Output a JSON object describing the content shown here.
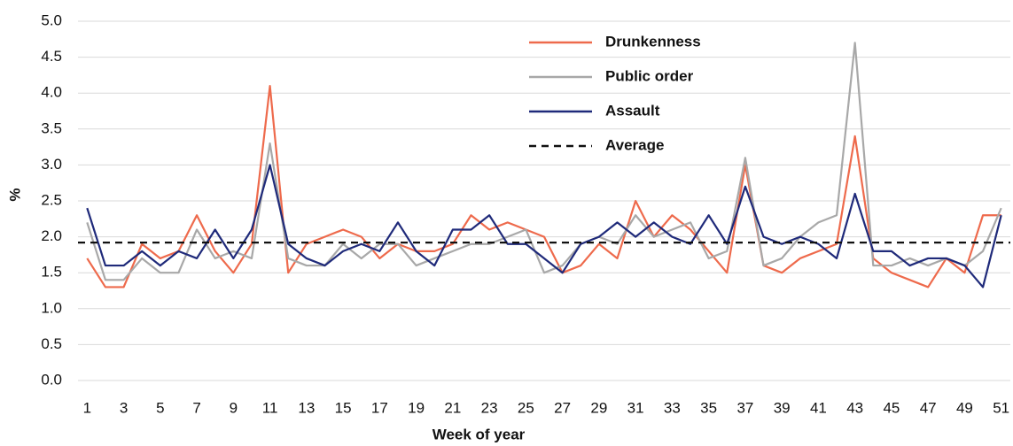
{
  "chart_data": {
    "type": "line",
    "x_label": "Week of year",
    "y_label": "%",
    "x": [
      1,
      2,
      3,
      4,
      5,
      6,
      7,
      8,
      9,
      10,
      11,
      12,
      13,
      14,
      15,
      16,
      17,
      18,
      19,
      20,
      21,
      22,
      23,
      24,
      25,
      26,
      27,
      28,
      29,
      30,
      31,
      32,
      33,
      34,
      35,
      36,
      37,
      38,
      39,
      40,
      41,
      42,
      43,
      44,
      45,
      46,
      47,
      48,
      49,
      50,
      51
    ],
    "xlim": [
      0.5,
      51.5
    ],
    "xticks": [
      1,
      3,
      5,
      7,
      9,
      11,
      13,
      15,
      17,
      19,
      21,
      23,
      25,
      27,
      29,
      31,
      33,
      35,
      37,
      39,
      41,
      43,
      45,
      47,
      49,
      51
    ],
    "ylim": [
      0,
      5
    ],
    "yticks": [
      {
        "value": 0,
        "label": "0.0"
      },
      {
        "value": 0.5,
        "label": "0.5"
      },
      {
        "value": 1,
        "label": "1.0"
      },
      {
        "value": 1.5,
        "label": "1.5"
      },
      {
        "value": 2,
        "label": "2.0"
      },
      {
        "value": 2.5,
        "label": "2.5"
      },
      {
        "value": 3,
        "label": "3.0"
      },
      {
        "value": 3.5,
        "label": "3.5"
      },
      {
        "value": 4,
        "label": "4.0"
      },
      {
        "value": 4.5,
        "label": "4.5"
      },
      {
        "value": 5,
        "label": "5.0"
      }
    ],
    "grid": true,
    "series": [
      {
        "name": "Drunkenness",
        "color": "#ee6a4c",
        "values": [
          1.7,
          1.3,
          1.3,
          1.9,
          1.7,
          1.8,
          2.3,
          1.8,
          1.5,
          1.9,
          4.1,
          1.5,
          1.9,
          2.0,
          2.1,
          2.0,
          1.7,
          1.9,
          1.8,
          1.8,
          1.9,
          2.3,
          2.1,
          2.2,
          2.1,
          2.0,
          1.5,
          1.6,
          1.9,
          1.7,
          2.5,
          2.0,
          2.3,
          2.1,
          1.8,
          1.5,
          3.0,
          1.6,
          1.5,
          1.7,
          1.8,
          1.9,
          3.4,
          1.7,
          1.5,
          1.4,
          1.3,
          1.7,
          1.5,
          2.3,
          2.3
        ]
      },
      {
        "name": "Public order",
        "color": "#a8a8a8",
        "values": [
          2.2,
          1.4,
          1.4,
          1.7,
          1.5,
          1.5,
          2.1,
          1.7,
          1.8,
          1.7,
          3.3,
          1.7,
          1.6,
          1.6,
          1.9,
          1.7,
          1.9,
          1.9,
          1.6,
          1.7,
          1.8,
          1.9,
          1.9,
          2.0,
          2.1,
          1.5,
          1.6,
          1.9,
          2.0,
          1.9,
          2.3,
          2.0,
          2.1,
          2.2,
          1.7,
          1.8,
          3.1,
          1.6,
          1.7,
          2.0,
          2.2,
          2.3,
          4.7,
          1.6,
          1.6,
          1.7,
          1.6,
          1.7,
          1.6,
          1.8,
          2.4
        ]
      },
      {
        "name": "Assault",
        "color": "#1f2a7a",
        "values": [
          2.4,
          1.6,
          1.6,
          1.8,
          1.6,
          1.8,
          1.7,
          2.1,
          1.7,
          2.1,
          3.0,
          1.9,
          1.7,
          1.6,
          1.8,
          1.9,
          1.8,
          2.2,
          1.8,
          1.6,
          2.1,
          2.1,
          2.3,
          1.9,
          1.9,
          1.7,
          1.5,
          1.9,
          2.0,
          2.2,
          2.0,
          2.2,
          2.0,
          1.9,
          2.3,
          1.9,
          2.7,
          2.0,
          1.9,
          2.0,
          1.9,
          1.7,
          2.6,
          1.8,
          1.8,
          1.6,
          1.7,
          1.7,
          1.6,
          1.3,
          2.3
        ]
      }
    ],
    "average_line": {
      "name": "Average",
      "value": 1.92,
      "color": "#111111",
      "dashed": true
    }
  }
}
